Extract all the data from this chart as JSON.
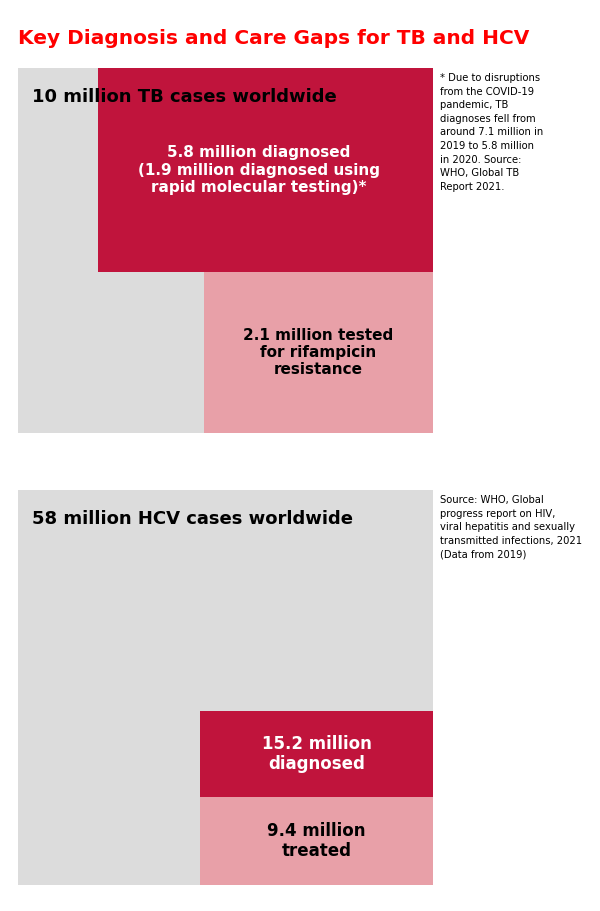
{
  "title": "Key Diagnosis and Care Gaps for TB and HCV",
  "title_color": "#FF0000",
  "title_fontsize": 14.5,
  "bg_color": "#FFFFFF",
  "tb_total_label": "10 million TB cases worldwide",
  "tb_diagnosed_label": "5.8 million diagnosed\n(1.9 million diagnosed using\nrapid molecular testing)*",
  "tb_tested_label": "2.1 million tested\nfor rifampicin\nresistance",
  "tb_footnote": "* Due to disruptions\nfrom the COVID-19\npandemic, TB\ndiagnoses fell from\naround 7.1 million in\n2019 to 5.8 million\nin 2020. Source:\nWHO, Global TB\nReport 2021.",
  "hcv_total_label": "58 million HCV cases worldwide",
  "hcv_diagnosed_label": "15.2 million\ndiagnosed",
  "hcv_treated_label": "9.4 million\ntreated",
  "hcv_footnote": "Source: WHO, Global\nprogress report on HIV,\nviral hepatitis and sexually\ntransmitted infections, 2021\n(Data from 2019)",
  "color_dark_red": "#C0143C",
  "color_light_pink": "#E8A0A8",
  "color_panel": "#DCDCDC"
}
